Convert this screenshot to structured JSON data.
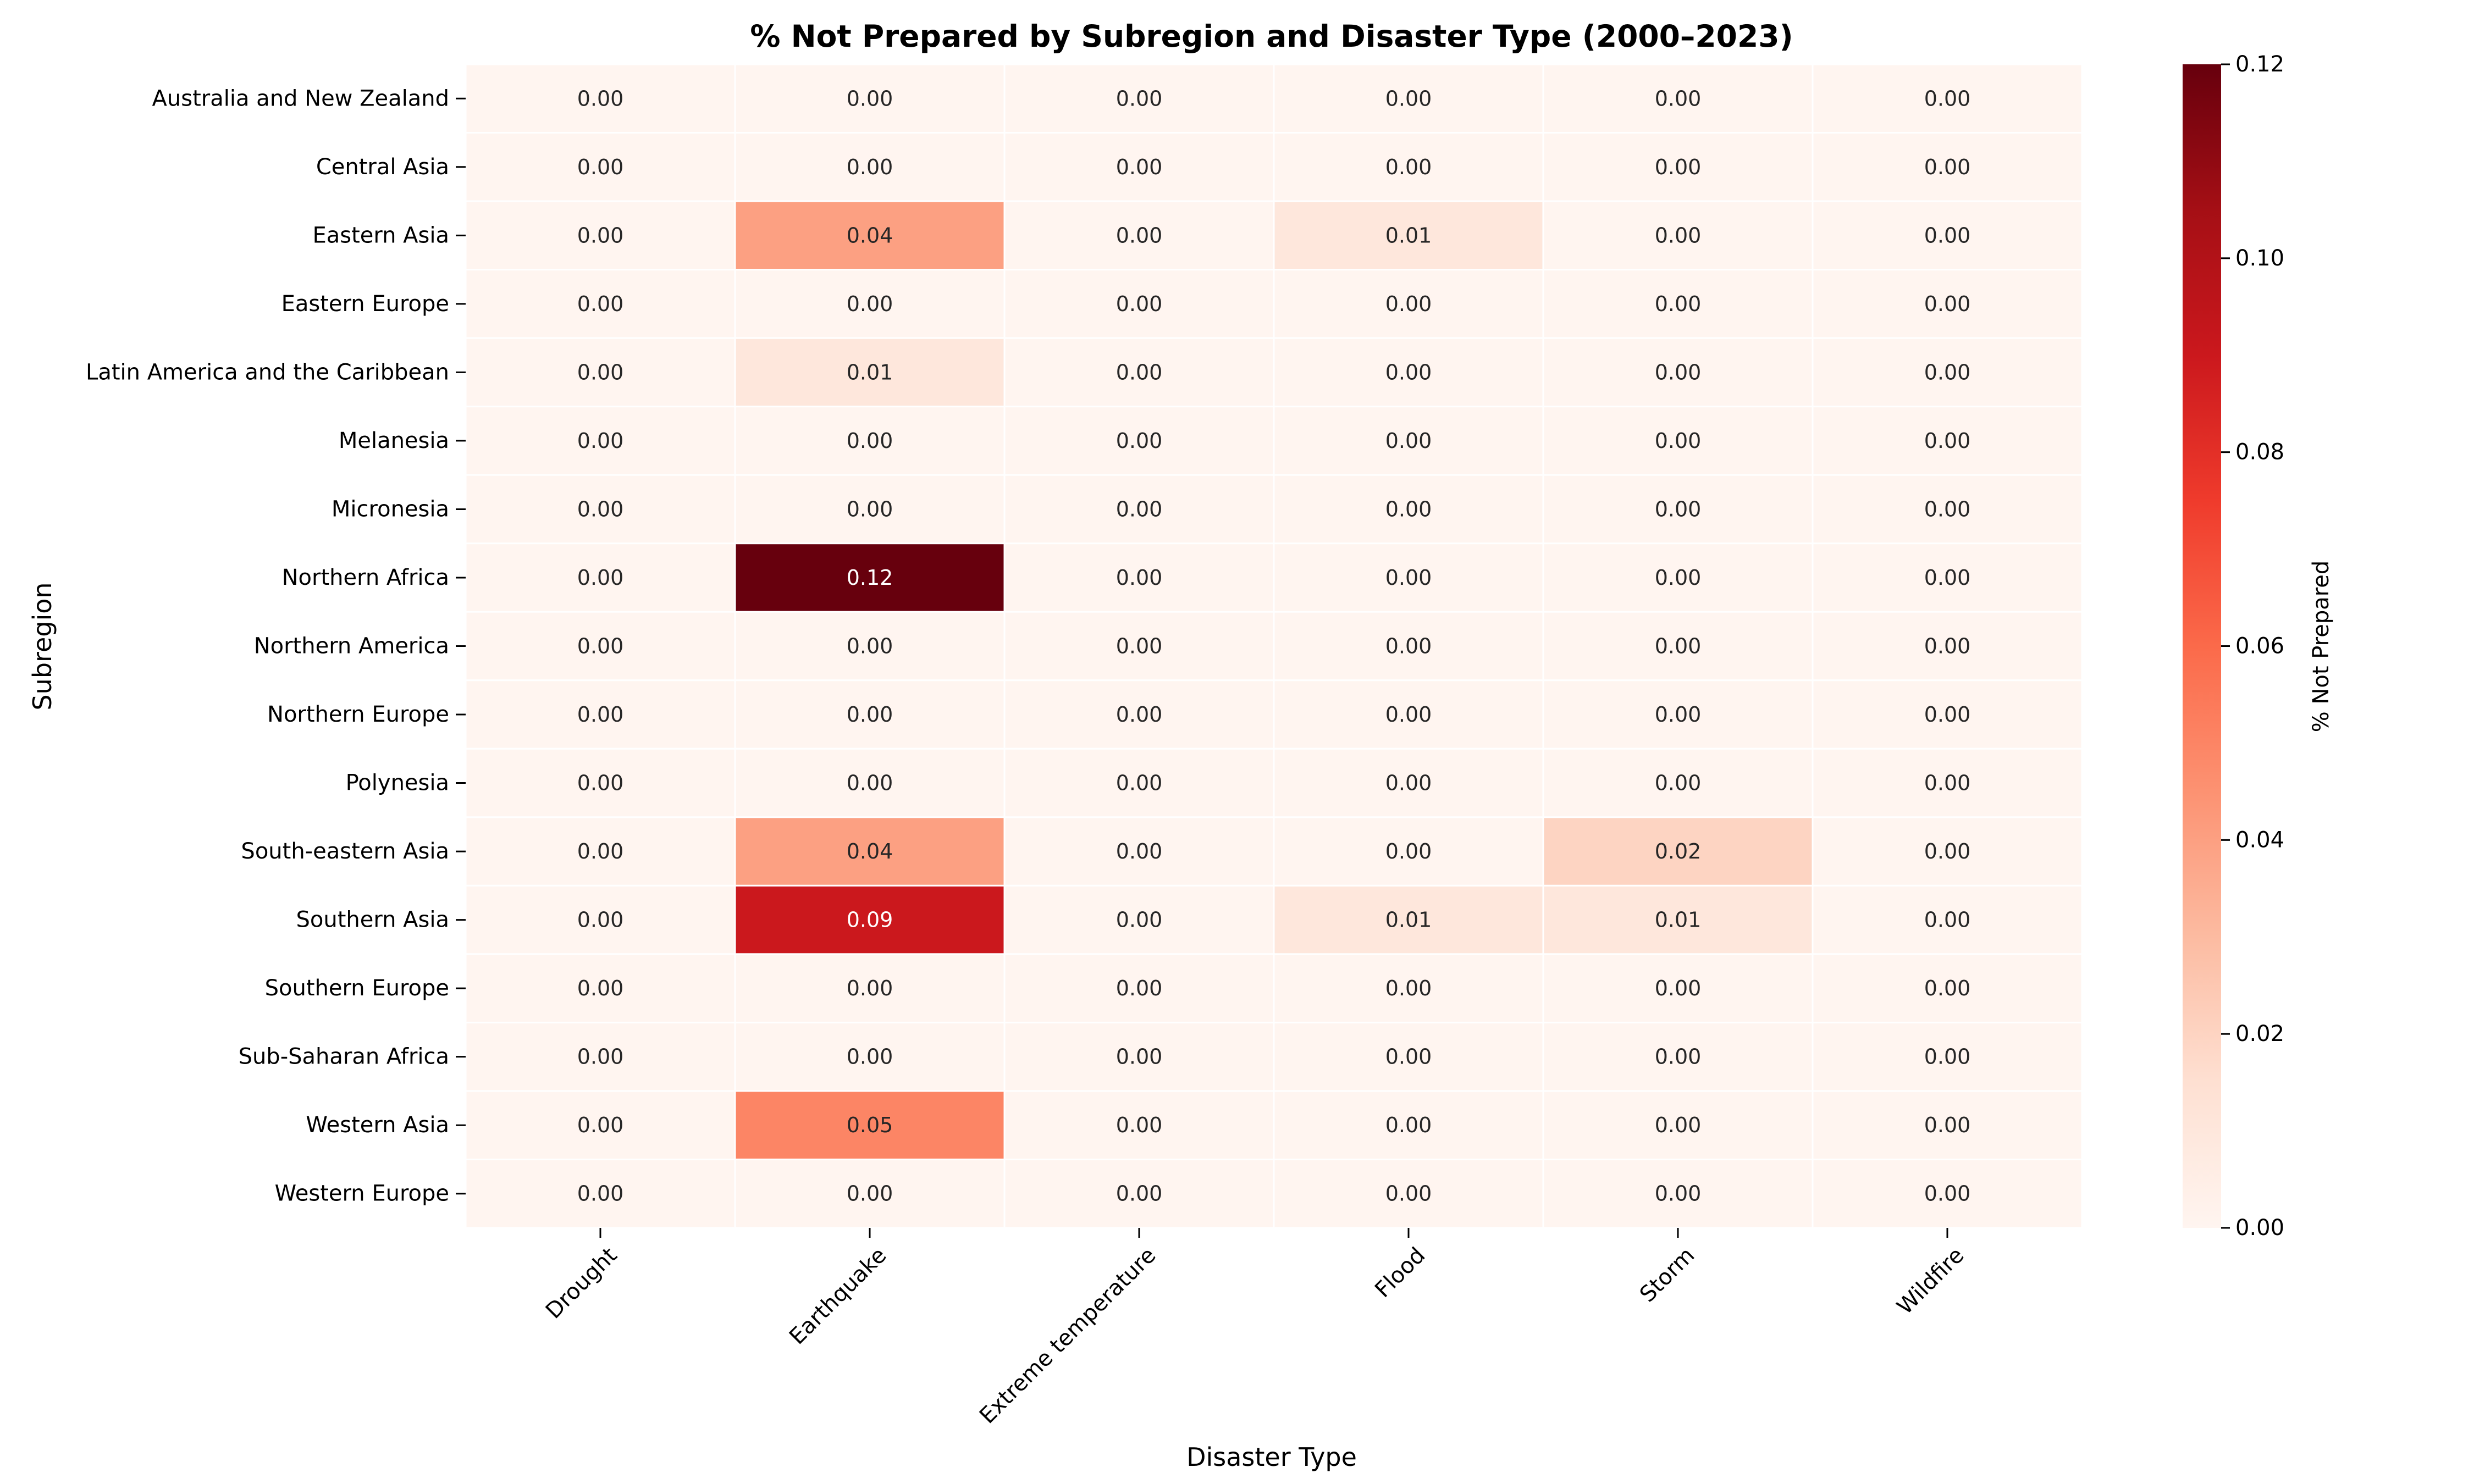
{
  "chart_data": {
    "type": "heatmap",
    "title": "% Not Prepared by Subregion and Disaster Type (2000–2023)",
    "xlabel": "Disaster Type",
    "ylabel": "Subregion",
    "colorbar_label": "% Not Prepared",
    "colormap": "Reds",
    "value_range": [
      0,
      0.12
    ],
    "colorbar_ticks": [
      "0.00",
      "0.02",
      "0.04",
      "0.06",
      "0.08",
      "0.10",
      "0.12"
    ],
    "x_categories": [
      "Drought",
      "Earthquake",
      "Extreme temperature",
      "Flood",
      "Storm",
      "Wildfire"
    ],
    "y_categories": [
      "Australia and New Zealand",
      "Central Asia",
      "Eastern Asia",
      "Eastern Europe",
      "Latin America and the Caribbean",
      "Melanesia",
      "Micronesia",
      "Northern Africa",
      "Northern America",
      "Northern Europe",
      "Polynesia",
      "South-eastern Asia",
      "Southern Asia",
      "Southern Europe",
      "Sub-Saharan Africa",
      "Western Asia",
      "Western Europe"
    ],
    "values": [
      [
        0.0,
        0.0,
        0.0,
        0.0,
        0.0,
        0.0
      ],
      [
        0.0,
        0.0,
        0.0,
        0.0,
        0.0,
        0.0
      ],
      [
        0.0,
        0.04,
        0.0,
        0.01,
        0.0,
        0.0
      ],
      [
        0.0,
        0.0,
        0.0,
        0.0,
        0.0,
        0.0
      ],
      [
        0.0,
        0.01,
        0.0,
        0.0,
        0.0,
        0.0
      ],
      [
        0.0,
        0.0,
        0.0,
        0.0,
        0.0,
        0.0
      ],
      [
        0.0,
        0.0,
        0.0,
        0.0,
        0.0,
        0.0
      ],
      [
        0.0,
        0.12,
        0.0,
        0.0,
        0.0,
        0.0
      ],
      [
        0.0,
        0.0,
        0.0,
        0.0,
        0.0,
        0.0
      ],
      [
        0.0,
        0.0,
        0.0,
        0.0,
        0.0,
        0.0
      ],
      [
        0.0,
        0.0,
        0.0,
        0.0,
        0.0,
        0.0
      ],
      [
        0.0,
        0.04,
        0.0,
        0.0,
        0.02,
        0.0
      ],
      [
        0.0,
        0.09,
        0.0,
        0.01,
        0.01,
        0.0
      ],
      [
        0.0,
        0.0,
        0.0,
        0.0,
        0.0,
        0.0
      ],
      [
        0.0,
        0.0,
        0.0,
        0.0,
        0.0,
        0.0
      ],
      [
        0.0,
        0.05,
        0.0,
        0.0,
        0.0,
        0.0
      ],
      [
        0.0,
        0.0,
        0.0,
        0.0,
        0.0,
        0.0
      ]
    ]
  }
}
